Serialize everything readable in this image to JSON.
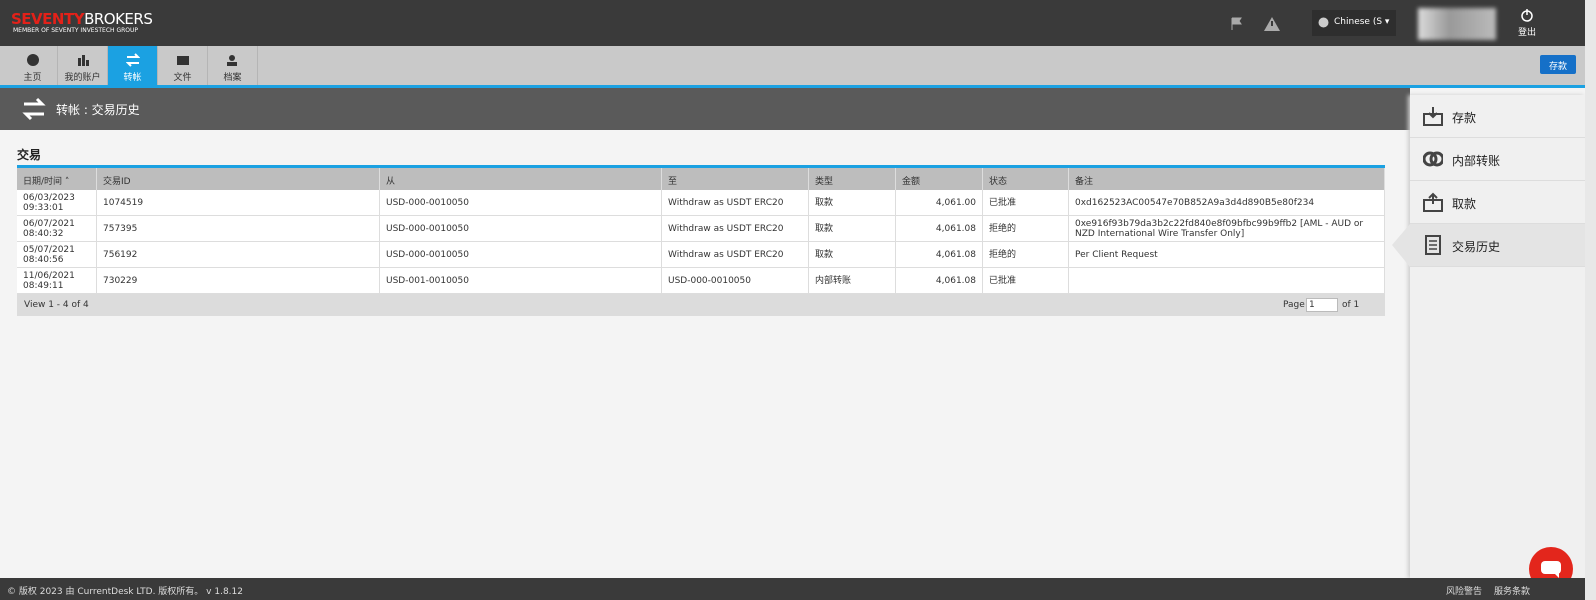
{
  "header": {
    "logo_red": "SEVENTY",
    "logo_white": "BROKERS",
    "logo_sub": "MEMBER OF SEVENTY INVESTECH GROUP",
    "language": "Chinese (S",
    "logout": "登出"
  },
  "nav": {
    "tabs": [
      "主页",
      "我的账户",
      "转帐",
      "文件",
      "档案"
    ],
    "active": 2,
    "deposit_button": "存款"
  },
  "page_title": "转帐 : 交易历史",
  "section_title": "交易",
  "table": {
    "columns": [
      "日期/时间",
      "交易ID",
      "从",
      "至",
      "类型",
      "金额",
      "状态",
      "备注"
    ],
    "rows": [
      [
        [
          "06/03/2023",
          "09:33:01"
        ],
        "1074519",
        "USD-000-0010050",
        "Withdraw as USDT ERC20",
        "取款",
        "4,061.00",
        "已批准",
        "0xd162523AC00547e70B852A9a3d4d890B5e80f234"
      ],
      [
        [
          "06/07/2021",
          "08:40:32"
        ],
        "757395",
        "USD-000-0010050",
        "Withdraw as USDT ERC20",
        "取款",
        "4,061.08",
        "拒绝的",
        "0xe916f93b79da3b2c22fd840e8f09bfbc99b9ffb2 [AML - AUD or NZD International Wire Transfer Only]"
      ],
      [
        [
          "05/07/2021",
          "08:40:56"
        ],
        "756192",
        "USD-000-0010050",
        "Withdraw as USDT ERC20",
        "取款",
        "4,061.08",
        "拒绝的",
        "Per Client Request"
      ],
      [
        [
          "11/06/2021",
          "08:49:11"
        ],
        "730229",
        "USD-001-0010050",
        "USD-000-0010050",
        "内部转账",
        "4,061.08",
        "已批准",
        null
      ]
    ],
    "pager": {
      "view": "View 1 - 4 of 4",
      "page_label": "Page",
      "page_input": "1",
      "page_total": "of 1"
    }
  },
  "sidebar": {
    "items": [
      "存款",
      "内部转账",
      "取款",
      "交易历史"
    ],
    "active": 3
  },
  "footer": {
    "copyright": "© 版权 2023 由 CurrentDesk LTD. 版权所有。 v 1.8.12",
    "links": [
      "风险警告",
      "服务条款"
    ]
  }
}
